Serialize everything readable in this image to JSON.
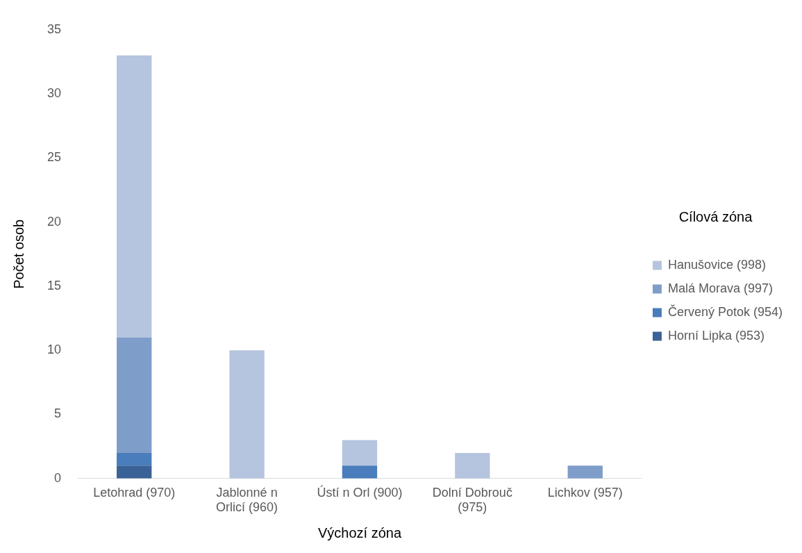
{
  "chart_data": {
    "type": "bar",
    "stacked": true,
    "xlabel": "Výchozí zóna",
    "ylabel": "Počet osob",
    "legend_title": "Cílová zóna",
    "legend": "right",
    "grid": false,
    "categories": [
      "Letohrad (970)",
      "Jablonné n Orlicí (960)",
      "Ústí n Orl (900)",
      "Dolní Dobrouč (975)",
      "Lichkov (957)"
    ],
    "ylim": [
      0,
      35
    ],
    "yticks": [
      0,
      5,
      10,
      15,
      20,
      25,
      30,
      35
    ],
    "series": [
      {
        "name": "Horní Lipka (953)",
        "color": "#3b6296",
        "values": [
          1,
          null,
          null,
          null,
          null
        ]
      },
      {
        "name": "Červený Potok (954)",
        "color": "#4a7dbb",
        "values": [
          1,
          null,
          1,
          null,
          null
        ]
      },
      {
        "name": "Malá Morava (997)",
        "color": "#7f9dc9",
        "values": [
          9,
          null,
          null,
          null,
          1
        ]
      },
      {
        "name": "Hanušovice (998)",
        "color": "#b5c4df",
        "values": [
          22,
          10,
          2,
          2,
          null
        ]
      }
    ]
  }
}
